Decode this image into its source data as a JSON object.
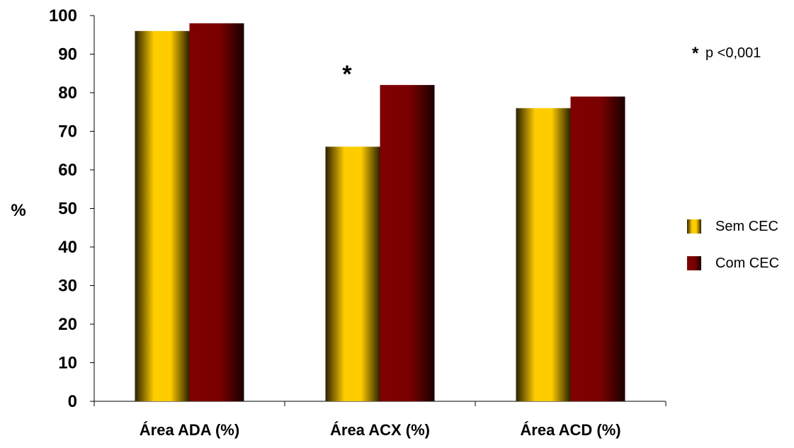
{
  "chart_data": {
    "type": "bar",
    "categories": [
      "Área ADA  (%)",
      "Área ACX (%)",
      "Área ACD (%)"
    ],
    "series": [
      {
        "name": "Sem CEC",
        "values": [
          96,
          66,
          76
        ],
        "color": "#FFCC00"
      },
      {
        "name": "Com CEC",
        "values": [
          98,
          82,
          79
        ],
        "color": "#800000"
      }
    ],
    "ylabel": "%",
    "ylim": [
      0,
      100
    ],
    "yticks": [
      0,
      10,
      20,
      30,
      40,
      50,
      60,
      70,
      80,
      90,
      100
    ],
    "grid": false,
    "legend_position": "right",
    "annotations": {
      "significance_marker": "*",
      "significance_category": "Área ACX (%)",
      "note_star": "*",
      "note_text": "p <0,001"
    }
  }
}
